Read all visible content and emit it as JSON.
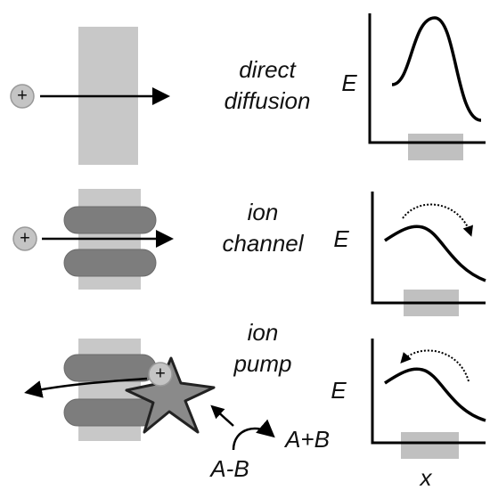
{
  "rows": [
    {
      "ion": "+",
      "label": [
        "direct",
        "diffusion"
      ],
      "axis_label": "E"
    },
    {
      "ion": "+",
      "label": [
        "ion",
        "channel"
      ],
      "axis_label": "E"
    },
    {
      "ion": "+",
      "label": [
        "ion",
        "pump"
      ],
      "axis_label": "E"
    }
  ],
  "pump": {
    "reactant": "A-B",
    "product": "A+B"
  },
  "x_label": "x"
}
